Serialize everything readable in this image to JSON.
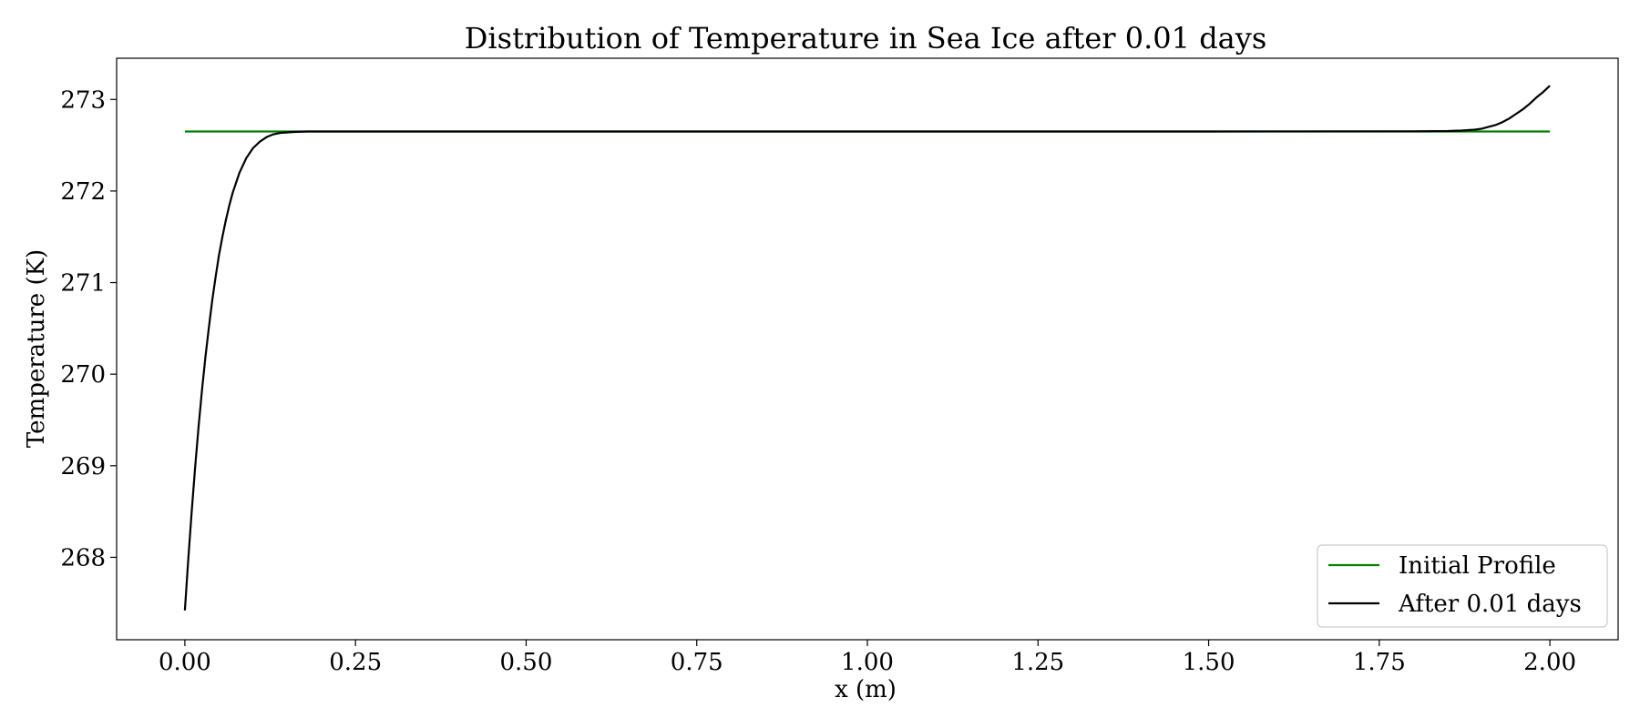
{
  "chart_data": {
    "type": "line",
    "title": "Distribution of Temperature in Sea Ice after 0.01 days",
    "xlabel": "x (m)",
    "ylabel": "Temperature (K)",
    "xlim": [
      -0.1,
      2.1
    ],
    "ylim": [
      267.1,
      273.45
    ],
    "xticks": [
      0.0,
      0.25,
      0.5,
      0.75,
      1.0,
      1.25,
      1.5,
      1.75,
      2.0
    ],
    "xtick_labels": [
      "0.00",
      "0.25",
      "0.50",
      "0.75",
      "1.00",
      "1.25",
      "1.50",
      "1.75",
      "2.00"
    ],
    "yticks": [
      268,
      269,
      270,
      271,
      272,
      273
    ],
    "ytick_labels": [
      "268",
      "269",
      "270",
      "271",
      "272",
      "273"
    ],
    "grid": false,
    "legend_position": "lower-right",
    "series": [
      {
        "name": "Initial Profile",
        "color": "#008000",
        "x": [
          0.0,
          2.0
        ],
        "y": [
          272.65,
          272.65
        ]
      },
      {
        "name": "After 0.01 days",
        "color": "#000000",
        "x": [
          0.0,
          0.005,
          0.01,
          0.015,
          0.02,
          0.025,
          0.03,
          0.035,
          0.04,
          0.045,
          0.05,
          0.055,
          0.06,
          0.065,
          0.07,
          0.08,
          0.09,
          0.1,
          0.11,
          0.12,
          0.13,
          0.14,
          0.16,
          0.18,
          0.2,
          0.25,
          0.5,
          1.0,
          1.5,
          1.8,
          1.85,
          1.87,
          1.89,
          1.9,
          1.91,
          1.92,
          1.93,
          1.94,
          1.95,
          1.96,
          1.97,
          1.98,
          1.99,
          2.0
        ],
        "y": [
          267.42,
          267.98,
          268.5,
          268.98,
          269.42,
          269.82,
          270.18,
          270.5,
          270.8,
          271.06,
          271.3,
          271.5,
          271.68,
          271.84,
          271.98,
          272.2,
          272.36,
          272.47,
          272.54,
          272.59,
          272.62,
          272.635,
          272.645,
          272.65,
          272.65,
          272.65,
          272.65,
          272.65,
          272.65,
          272.652,
          272.655,
          272.66,
          272.67,
          272.68,
          272.7,
          272.72,
          272.75,
          272.79,
          272.84,
          272.89,
          272.95,
          273.02,
          273.08,
          273.15
        ]
      }
    ]
  }
}
